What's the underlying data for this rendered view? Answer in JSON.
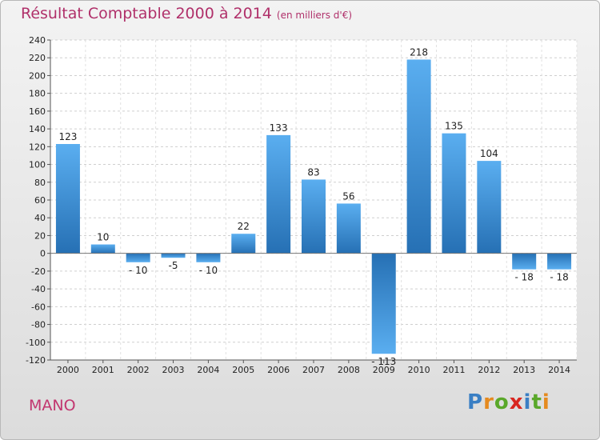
{
  "header": {
    "title": "Résultat Comptable 2000 à 2014",
    "subtitle": "(en milliers d'€)"
  },
  "footer": {
    "commune": "MANO",
    "brand": [
      "P",
      "r",
      "o",
      "x",
      "i",
      "t",
      "i"
    ],
    "brand_colors": [
      "#3a7fc4",
      "#e58a1f",
      "#5aa82a",
      "#d8261f",
      "#3a7fc4",
      "#5aa82a",
      "#e58a1f"
    ]
  },
  "chart_data": {
    "type": "bar",
    "title": "Résultat Comptable 2000 à 2014",
    "subtitle": "(en milliers d'€)",
    "categories": [
      "2000",
      "2001",
      "2002",
      "2003",
      "2004",
      "2005",
      "2006",
      "2007",
      "2008",
      "2009",
      "2010",
      "2011",
      "2012",
      "2013",
      "2014"
    ],
    "values": [
      123,
      10,
      -10,
      -5,
      -10,
      22,
      133,
      83,
      56,
      -113,
      218,
      135,
      104,
      -18,
      -18
    ],
    "labels": [
      "123",
      "10",
      "- 10",
      "-5",
      "- 10",
      "22",
      "133",
      "83",
      "56",
      "- 113",
      "218",
      "135",
      "104",
      "- 18",
      "- 18"
    ],
    "ylim": [
      -120,
      240
    ],
    "yticks": [
      -120,
      -100,
      -80,
      -60,
      -40,
      -20,
      0,
      20,
      40,
      60,
      80,
      100,
      120,
      140,
      160,
      180,
      200,
      220,
      240
    ],
    "grid": true,
    "bar_color": "#3f8fd4"
  }
}
